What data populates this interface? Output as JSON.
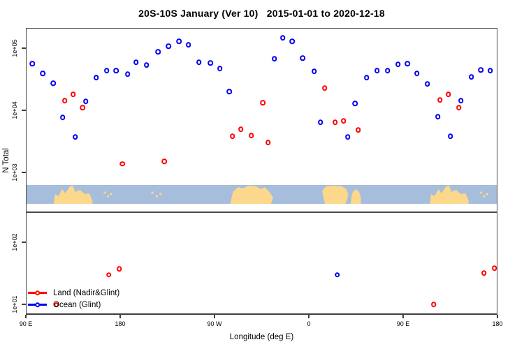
{
  "title": "20S-10S January (Ver 10)   2015-01-01 to 2020-12-18",
  "axes": {
    "y_label": "N Total",
    "x_label": "Longitude (deg E)",
    "y_ticks": [
      {
        "label": "1e+05",
        "value": 100000
      },
      {
        "label": "1e+04",
        "value": 10000
      },
      {
        "label": "1e+03",
        "value": 1000
      },
      {
        "label": "1e+02",
        "value": 100
      },
      {
        "label": "1e+01",
        "value": 10
      }
    ],
    "x_ticks": [
      {
        "label": "90 E",
        "lon": 90
      },
      {
        "label": "180",
        "lon": 180
      },
      {
        "label": "90 W",
        "lon": 270
      },
      {
        "label": "0",
        "lon": 360
      },
      {
        "label": "90 E",
        "lon": 450
      },
      {
        "label": "180",
        "lon": 540
      }
    ]
  },
  "legend": [
    {
      "label": "Land (Nadir&Glint)",
      "color": "#ff0000"
    },
    {
      "label": "Ocean (Glint)",
      "color": "#0000f0"
    }
  ],
  "colors": {
    "land_series": "#ff0000",
    "ocean_series": "#0000f0",
    "map_ocean": "#a7bddc",
    "map_land": "#fbd88c",
    "axis_line": "#4a4a4a"
  },
  "chart_data": {
    "type": "scatter",
    "title": "20S-10S January (Ver 10)   2015-01-01 to 2020-12-18",
    "xlabel": "Longitude (deg E)",
    "ylabel": "N Total",
    "x_axis": {
      "range": [
        90,
        540
      ],
      "tick_labels": [
        "90 E",
        "180",
        "90 W",
        "0",
        "90 E",
        "180"
      ],
      "tick_lons": [
        90,
        180,
        270,
        360,
        450,
        540
      ],
      "note": "longitude increases eastward and wraps; lon>360 equals lon-360 deg E"
    },
    "y_axis": {
      "scale": "log10",
      "tick_labels": [
        "1e+05",
        "1e+04",
        "1e+03",
        "1e+02",
        "1e+01"
      ],
      "broken_between": [
        100,
        1000
      ]
    },
    "series": [
      {
        "name": "Land (Nadir&Glint)",
        "color": "#ff0000",
        "points": [
          [
            127,
            14300
          ],
          [
            135,
            18100
          ],
          [
            144,
            11100
          ],
          [
            182,
            1370
          ],
          [
            222,
            1510
          ],
          [
            287,
            3840
          ],
          [
            295,
            4970
          ],
          [
            305,
            3940
          ],
          [
            316,
            13300
          ],
          [
            321,
            3040
          ],
          [
            375,
            22900
          ],
          [
            385,
            6440
          ],
          [
            393,
            6780
          ],
          [
            407,
            4840
          ],
          [
            485,
            14700
          ],
          [
            493,
            18100
          ],
          [
            503,
            11100
          ],
          [
            119,
            9.8
          ],
          [
            169,
            30
          ],
          [
            179,
            37
          ],
          [
            479,
            10
          ],
          [
            527,
            32
          ],
          [
            537,
            38
          ]
        ]
      },
      {
        "name": "Ocean (Glint)",
        "color": "#0000f0",
        "points": [
          [
            96,
            56600
          ],
          [
            106,
            39400
          ],
          [
            116,
            27400
          ],
          [
            125,
            7700
          ],
          [
            137,
            3700
          ],
          [
            147,
            14000
          ],
          [
            157,
            33700
          ],
          [
            167,
            43700
          ],
          [
            176,
            43700
          ],
          [
            187,
            38400
          ],
          [
            195,
            59600
          ],
          [
            205,
            53700
          ],
          [
            216,
            87900
          ],
          [
            226,
            108000
          ],
          [
            236,
            129000
          ],
          [
            245,
            114000
          ],
          [
            255,
            59600
          ],
          [
            266,
            58100
          ],
          [
            275,
            47200
          ],
          [
            284,
            20100
          ],
          [
            327,
            67800
          ],
          [
            335,
            147000
          ],
          [
            344,
            129000
          ],
          [
            354,
            69600
          ],
          [
            365,
            42600
          ],
          [
            371,
            6400
          ],
          [
            397,
            3700
          ],
          [
            404,
            12900
          ],
          [
            415,
            33700
          ],
          [
            425,
            43700
          ],
          [
            435,
            43700
          ],
          [
            445,
            55200
          ],
          [
            454,
            56600
          ],
          [
            463,
            39400
          ],
          [
            473,
            26700
          ],
          [
            483,
            7900
          ],
          [
            495,
            3800
          ],
          [
            505,
            14300
          ],
          [
            515,
            34600
          ],
          [
            524,
            44800
          ],
          [
            533,
            43700
          ],
          [
            387,
            30
          ]
        ]
      }
    ]
  },
  "map_strip": {
    "ocean_color": "#a7bddc",
    "land_color": "#fbd88c",
    "lands": [
      {
        "type": "australia-newguinea",
        "lon": [
          116,
          153
        ]
      },
      {
        "type": "islands",
        "lon": [
          163,
          172
        ]
      },
      {
        "type": "islands",
        "lon": [
          208,
          220
        ]
      },
      {
        "type": "south-america",
        "lon": [
          285,
          326
        ]
      },
      {
        "type": "africa",
        "lon": [
          373,
          398
        ]
      },
      {
        "type": "madagascar",
        "lon": [
          400,
          410
        ]
      },
      {
        "type": "australia-newguinea",
        "lon": [
          476,
          513
        ]
      },
      {
        "type": "islands",
        "lon": [
          523,
          532
        ]
      }
    ]
  }
}
